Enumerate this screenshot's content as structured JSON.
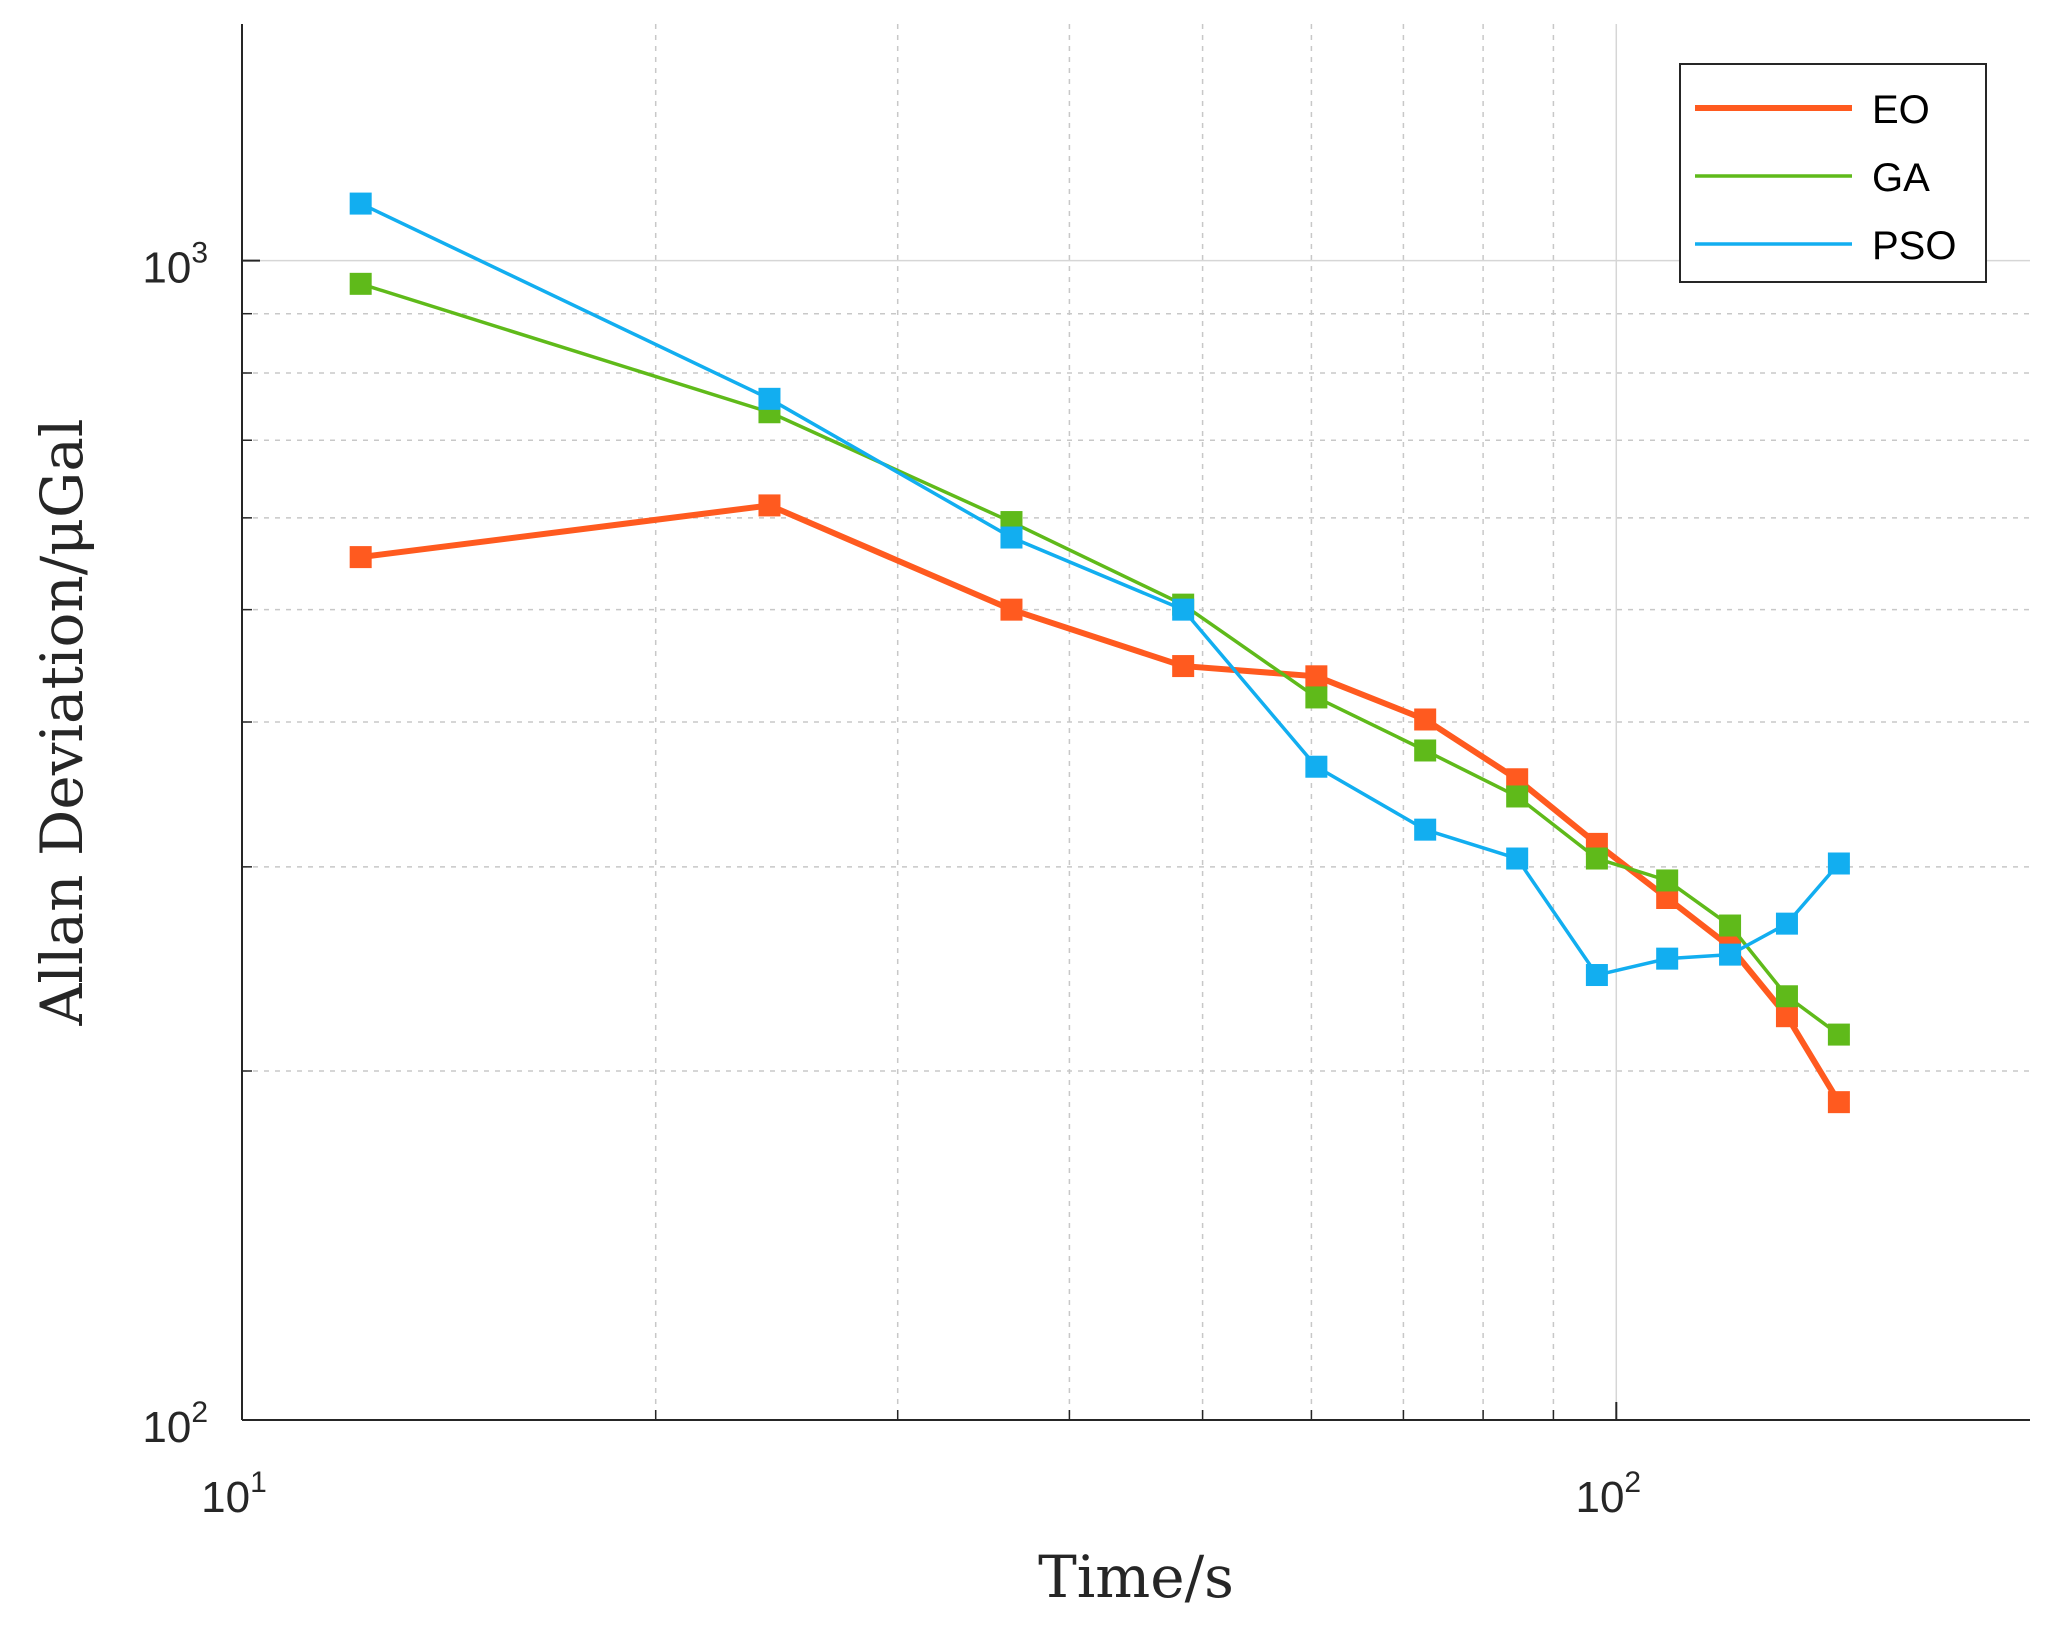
{
  "chart_data": {
    "type": "line",
    "title": "",
    "xlabel": "Time/s",
    "ylabel": "Allan Deviation/μGal",
    "xscale": "log",
    "yscale": "log",
    "xlim": [
      10,
      200
    ],
    "ylim": [
      100,
      1600
    ],
    "grid": true,
    "legend_position": "top-right",
    "x_ticks": [
      {
        "base": "10",
        "exp": "1",
        "value": 10
      },
      {
        "base": "10",
        "exp": "2",
        "value": 100
      }
    ],
    "y_ticks": [
      {
        "base": "10",
        "exp": "2",
        "value": 100
      },
      {
        "base": "10",
        "exp": "3",
        "value": 1000
      }
    ],
    "x": [
      12.2,
      24.2,
      36.3,
      48.4,
      60.5,
      72.6,
      84.7,
      96.8,
      108.9,
      121,
      133.1,
      145.2
    ],
    "series": [
      {
        "name": "EO",
        "color": "#ff5a1f",
        "values": [
          555,
          615,
          500,
          447,
          438,
          402,
          357,
          314,
          282,
          256,
          223,
          188
        ]
      },
      {
        "name": "GA",
        "color": "#5fba1a",
        "values": [
          955,
          740,
          595,
          505,
          420,
          378,
          345,
          305,
          292,
          267,
          232,
          215
        ]
      },
      {
        "name": "PSO",
        "color": "#12aef0",
        "values": [
          1120,
          760,
          577,
          500,
          366,
          323,
          305,
          242,
          250,
          252,
          268,
          302
        ]
      }
    ]
  }
}
